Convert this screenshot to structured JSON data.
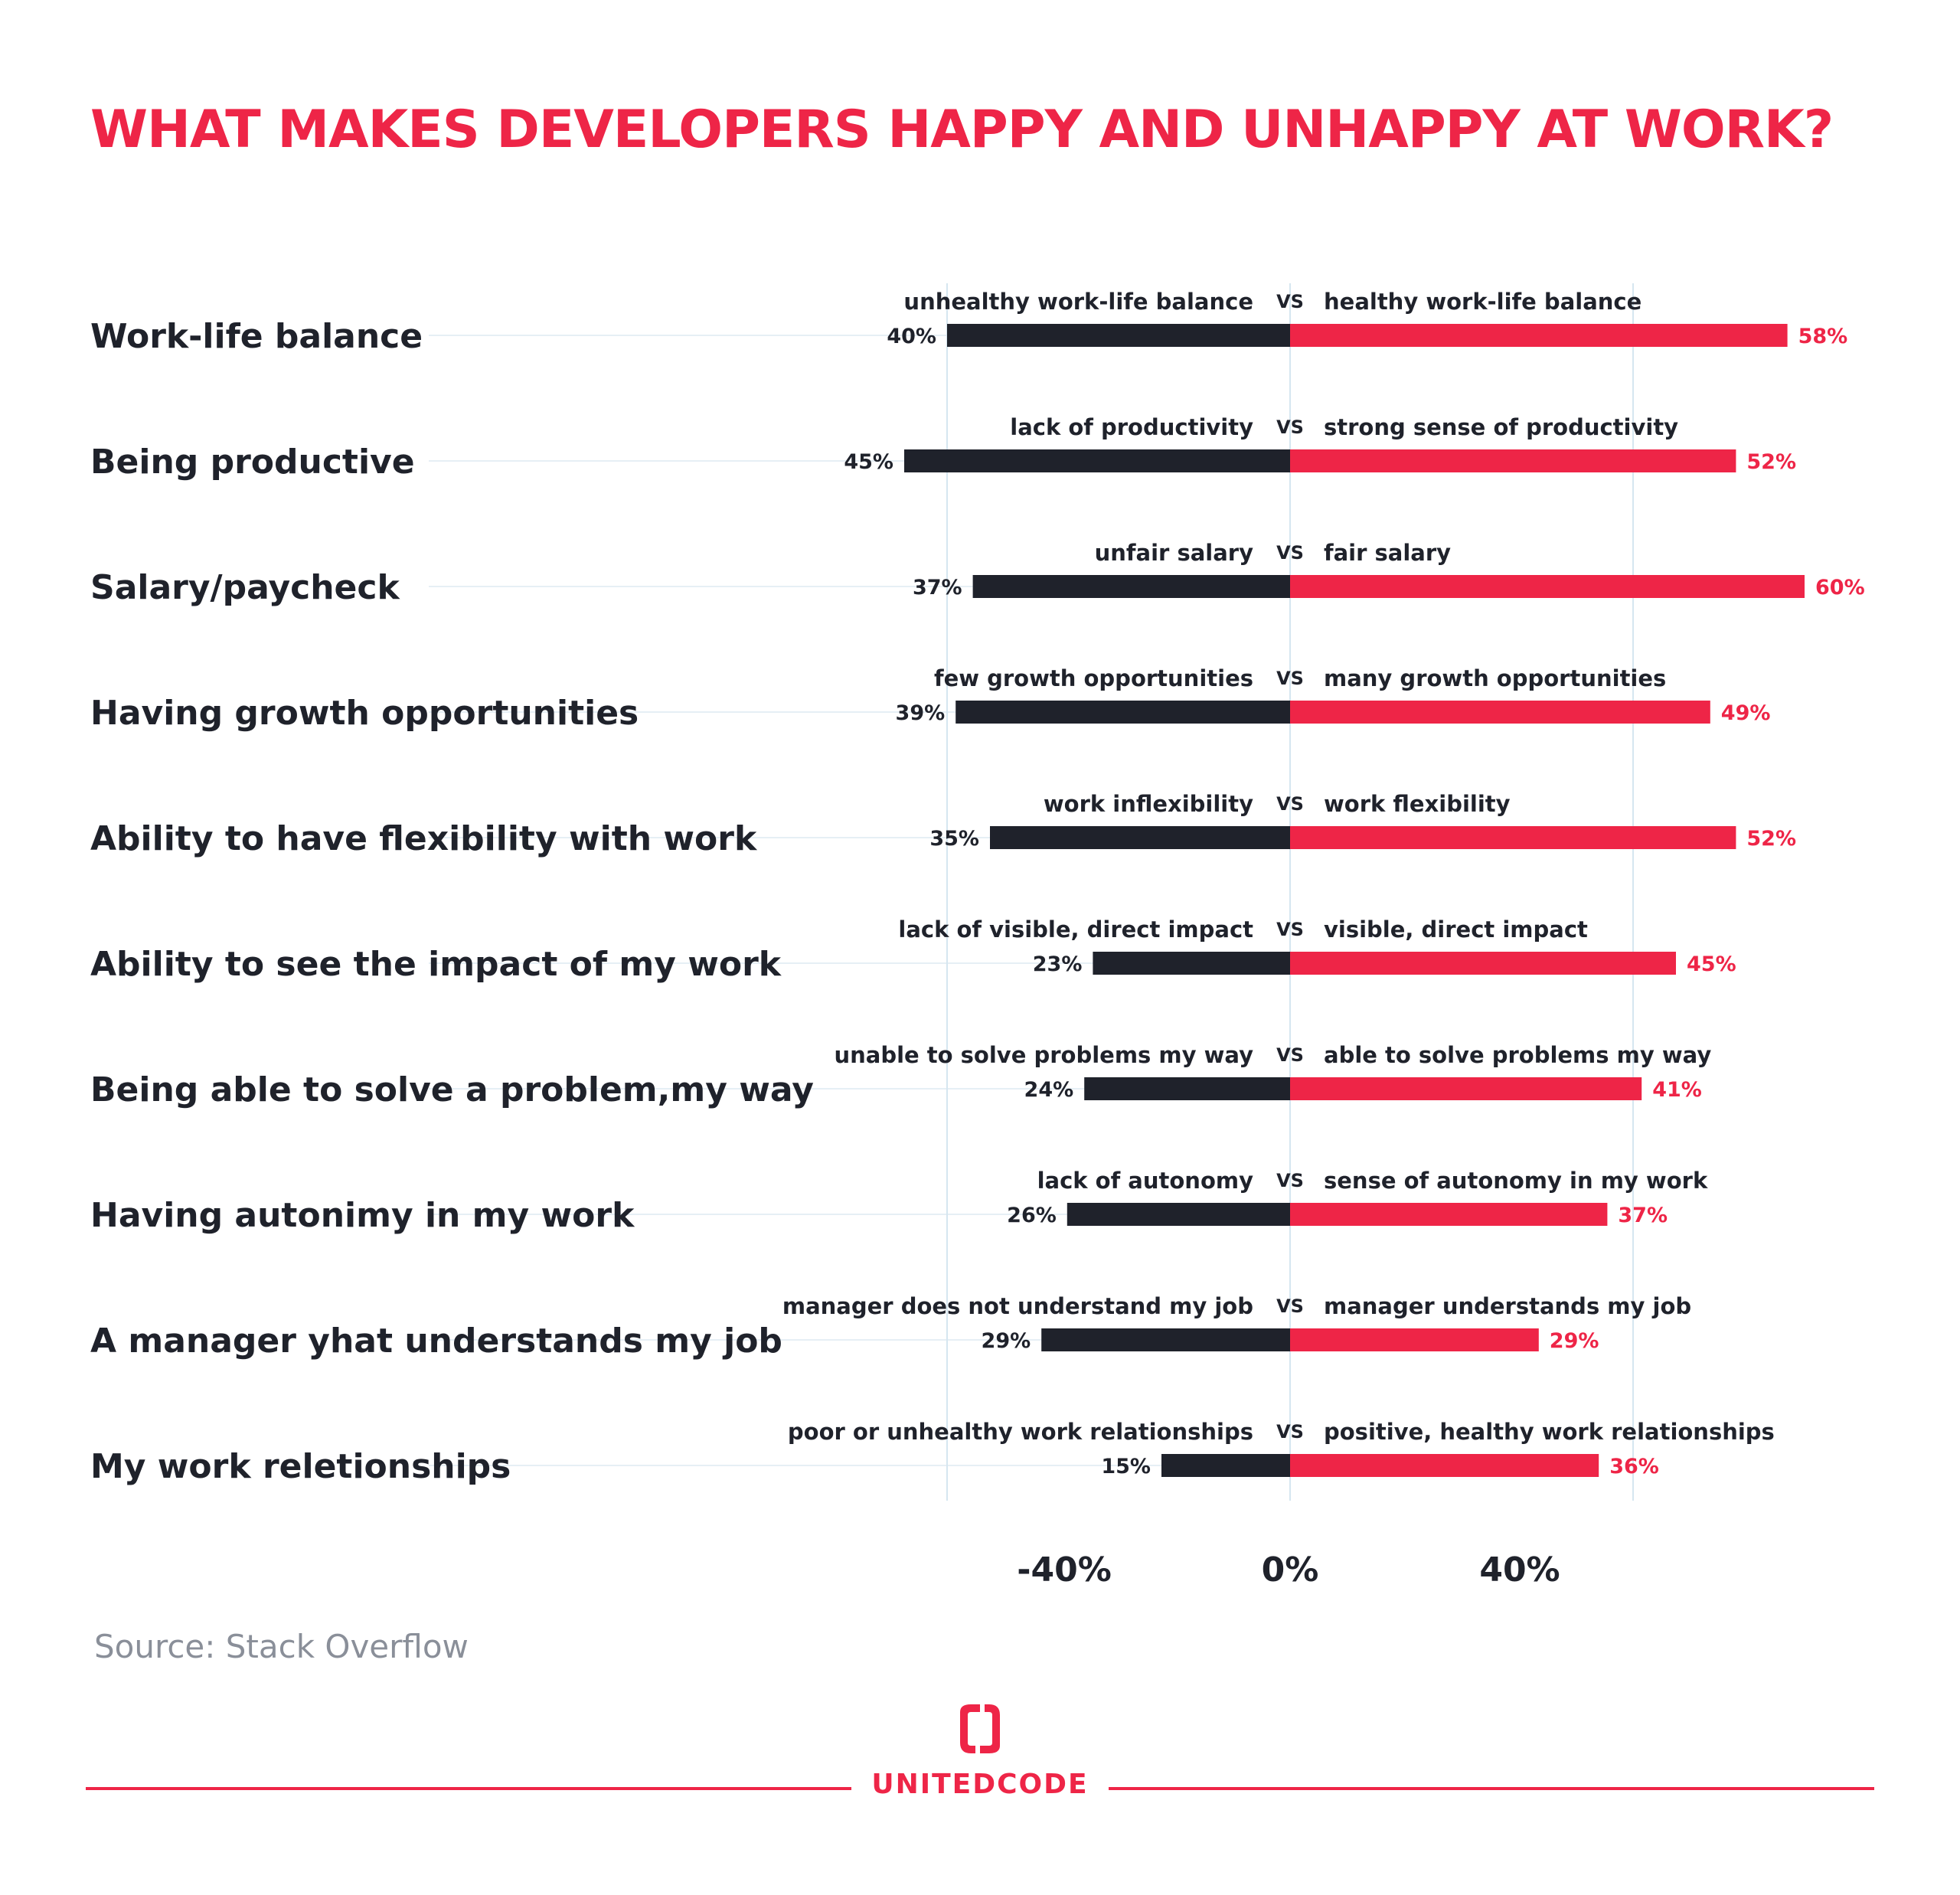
{
  "title": "WHAT MAKES DEVELOPERS HAPPY AND UNHAPPY AT WORK?",
  "source": "Source: Stack Overflow",
  "brand": "UNITEDCODE",
  "colors": {
    "negative": "#1f222b",
    "positive": "#ee2547",
    "grid": "#d6e6f0"
  },
  "chart_data": {
    "type": "bar",
    "orientation": "horizontal-diverging",
    "vs_label": "VS",
    "categories": [
      "Work-life balance",
      "Being productive",
      "Salary/paycheck",
      "Having growth opportunities",
      "Ability to have flexibility with work",
      "Ability to see the impact of my work",
      "Being able to solve a problem,my way",
      "Having autonimy in my work",
      "A manager yhat understands my job",
      "My work reletionships"
    ],
    "negative_labels": [
      "unhealthy work-life balance",
      "lack of productivity",
      "unfair salary",
      "few growth opportunities",
      "work inflexibility",
      "lack of visible, direct impact",
      "unable to solve problems my way",
      "lack of autonomy",
      "manager does not understand my job",
      "poor or unhealthy work relationships"
    ],
    "positive_labels": [
      "healthy work-life balance",
      "strong sense of productivity",
      "fair salary",
      "many growth opportunities",
      "work flexibility",
      "visible, direct impact",
      "able to solve problems my way",
      "sense of autonomy in my work",
      "manager understands my job",
      "positive, healthy work relationships"
    ],
    "negative_values": [
      40,
      45,
      37,
      39,
      35,
      23,
      24,
      26,
      29,
      15
    ],
    "positive_values": [
      58,
      52,
      60,
      49,
      52,
      45,
      41,
      37,
      29,
      36
    ],
    "negative_value_labels": [
      "40%",
      "45%",
      "37%",
      "39%",
      "35%",
      "23%",
      "24%",
      "26%",
      "29%",
      "15%"
    ],
    "positive_value_labels": [
      "58%",
      "52%",
      "60%",
      "49%",
      "52%",
      "45%",
      "41%",
      "37%",
      "29%",
      "36%"
    ],
    "x_ticks": [
      {
        "value": -40,
        "label": "-40%"
      },
      {
        "value": 0,
        "label": "0%"
      },
      {
        "value": 40,
        "label": "40%"
      }
    ],
    "gridlines": [
      -40,
      0,
      40
    ],
    "xlim": [
      -60,
      60
    ]
  }
}
